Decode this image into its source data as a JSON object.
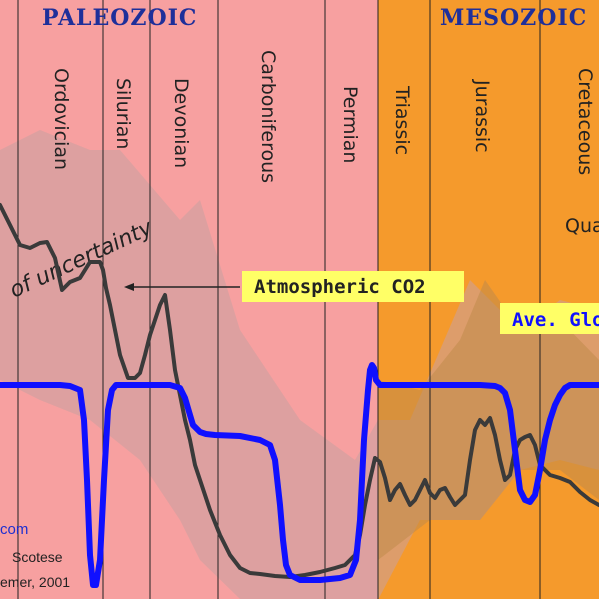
{
  "chart_data": {
    "type": "line",
    "title": "",
    "eras": [
      "PALEOZOIC",
      "MESOZOIC"
    ],
    "periods": [
      "Ordovician",
      "Silurian",
      "Devonian",
      "Carboniferous",
      "Permian",
      "Triassic",
      "Jurassic",
      "Cretaceous"
    ],
    "partial_labels": {
      "quaternary_fragment": "Qua",
      "temperature_fragment": "Ave. Glo",
      "site_fragment": "com",
      "credit_line1": "Scotese",
      "credit_line2": "emer, 2001"
    },
    "annotations": {
      "co2_label": "Atmospheric CO2",
      "uncertainty_label": "of uncertainty"
    },
    "colors": {
      "paleozoic_bg": "#f7a0a0",
      "mesozoic_bg": "#f59a2c",
      "uncertainty_band": "#c8a0a0",
      "co2_line": "#3a3a3a",
      "temperature_line": "#1010ff",
      "label_box": "#ffff66",
      "era_text": "#1e2f9a"
    },
    "series": [
      {
        "name": "Atmospheric CO2",
        "x": [
          0,
          10,
          20,
          30,
          40,
          47,
          55,
          62,
          70,
          80,
          90,
          100,
          103,
          106,
          110,
          115,
          120,
          128,
          135,
          140,
          145,
          150,
          155,
          160,
          165,
          170,
          175,
          180,
          185,
          190,
          195,
          200,
          210,
          220,
          230,
          240,
          250,
          260,
          275,
          290,
          305,
          320,
          335,
          345,
          355,
          360,
          365,
          370,
          375,
          380,
          385,
          390,
          395,
          400,
          405,
          410,
          415,
          420,
          425,
          430,
          435,
          440,
          445,
          450,
          455,
          460,
          465,
          470,
          475,
          480,
          485,
          490,
          495,
          500,
          505,
          510,
          515,
          520,
          525,
          530,
          535,
          540,
          545,
          550,
          560,
          570,
          580,
          590,
          599
        ],
        "y": [
          205,
          225,
          245,
          248,
          243,
          242,
          258,
          290,
          282,
          278,
          262,
          262,
          270,
          288,
          305,
          330,
          355,
          378,
          378,
          373,
          355,
          335,
          320,
          305,
          295,
          330,
          370,
          395,
          420,
          440,
          465,
          480,
          510,
          535,
          555,
          568,
          573,
          574,
          576,
          577,
          575,
          572,
          568,
          565,
          555,
          535,
          505,
          480,
          458,
          462,
          478,
          500,
          490,
          484,
          495,
          505,
          500,
          490,
          480,
          493,
          498,
          490,
          488,
          497,
          505,
          500,
          495,
          460,
          430,
          420,
          425,
          418,
          435,
          460,
          480,
          475,
          450,
          440,
          437,
          435,
          445,
          465,
          470,
          475,
          478,
          482,
          492,
          500,
          505
        ],
        "y_unit": "pixel-space reading (relative)"
      },
      {
        "name": "Ave. Global Temperature",
        "x": [
          0,
          20,
          40,
          60,
          70,
          80,
          84,
          87,
          90,
          93,
          96,
          100,
          104,
          108,
          112,
          116,
          120,
          130,
          140,
          150,
          160,
          170,
          180,
          185,
          190,
          193,
          196,
          200,
          206,
          215,
          240,
          260,
          270,
          275,
          280,
          283,
          286,
          290,
          300,
          320,
          340,
          350,
          356,
          360,
          364,
          368,
          370,
          372,
          374,
          376,
          380,
          390,
          420,
          450,
          480,
          495,
          500,
          505,
          510,
          515,
          520,
          525,
          530,
          535,
          540,
          545,
          550,
          555,
          560,
          565,
          570,
          580,
          590,
          599
        ],
        "y": [
          385,
          385,
          385,
          385,
          386,
          390,
          420,
          480,
          555,
          585,
          585,
          560,
          480,
          410,
          390,
          385,
          385,
          385,
          385,
          385,
          385,
          385,
          388,
          398,
          415,
          425,
          428,
          432,
          434,
          435,
          436,
          440,
          445,
          460,
          505,
          540,
          565,
          575,
          580,
          580,
          578,
          575,
          560,
          520,
          440,
          390,
          370,
          365,
          368,
          380,
          385,
          385,
          385,
          385,
          385,
          386,
          388,
          393,
          410,
          450,
          490,
          500,
          502,
          495,
          470,
          440,
          420,
          405,
          395,
          388,
          385,
          385,
          385,
          385
        ],
        "y_unit": "pixel-space reading (relative)"
      }
    ]
  }
}
